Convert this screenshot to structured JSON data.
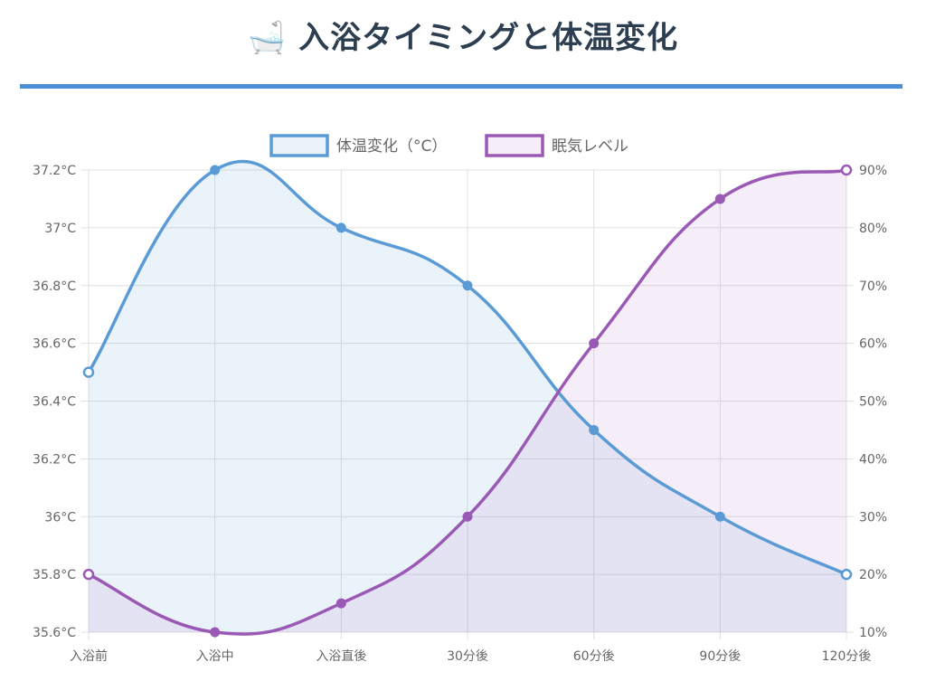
{
  "title": "🛁 入浴タイミングと体温変化",
  "colors": {
    "temp": "#5b9bd5",
    "temp_fill": "rgba(91,155,213,0.12)",
    "sleep": "#9b59b6",
    "sleep_fill": "rgba(155,89,182,0.10)",
    "grid": "#e0e0e0",
    "title": "#2c3e50",
    "divider": "#4a90d9"
  },
  "chart_data": {
    "type": "line",
    "categories": [
      "入浴前",
      "入浴中",
      "入浴直後",
      "30分後",
      "60分後",
      "90分後",
      "120分後"
    ],
    "series": [
      {
        "name": "体温変化（°C）",
        "axis": "left",
        "values": [
          36.5,
          37.2,
          37.0,
          36.8,
          36.3,
          36.0,
          35.8
        ]
      },
      {
        "name": "眠気レベル",
        "axis": "right",
        "values": [
          20,
          10,
          15,
          30,
          60,
          85,
          90
        ]
      }
    ],
    "y_left": {
      "min": 35.6,
      "max": 37.2,
      "step": 0.2,
      "ticks": [
        "35.6°C",
        "35.8°C",
        "36°C",
        "36.2°C",
        "36.4°C",
        "36.6°C",
        "36.8°C",
        "37°C",
        "37.2°C"
      ]
    },
    "y_right": {
      "min": 10,
      "max": 90,
      "step": 10,
      "ticks": [
        "10%",
        "20%",
        "30%",
        "40%",
        "50%",
        "60%",
        "70%",
        "80%",
        "90%"
      ]
    },
    "grid": true,
    "legend_position": "top",
    "fill": true,
    "smooth": true
  }
}
